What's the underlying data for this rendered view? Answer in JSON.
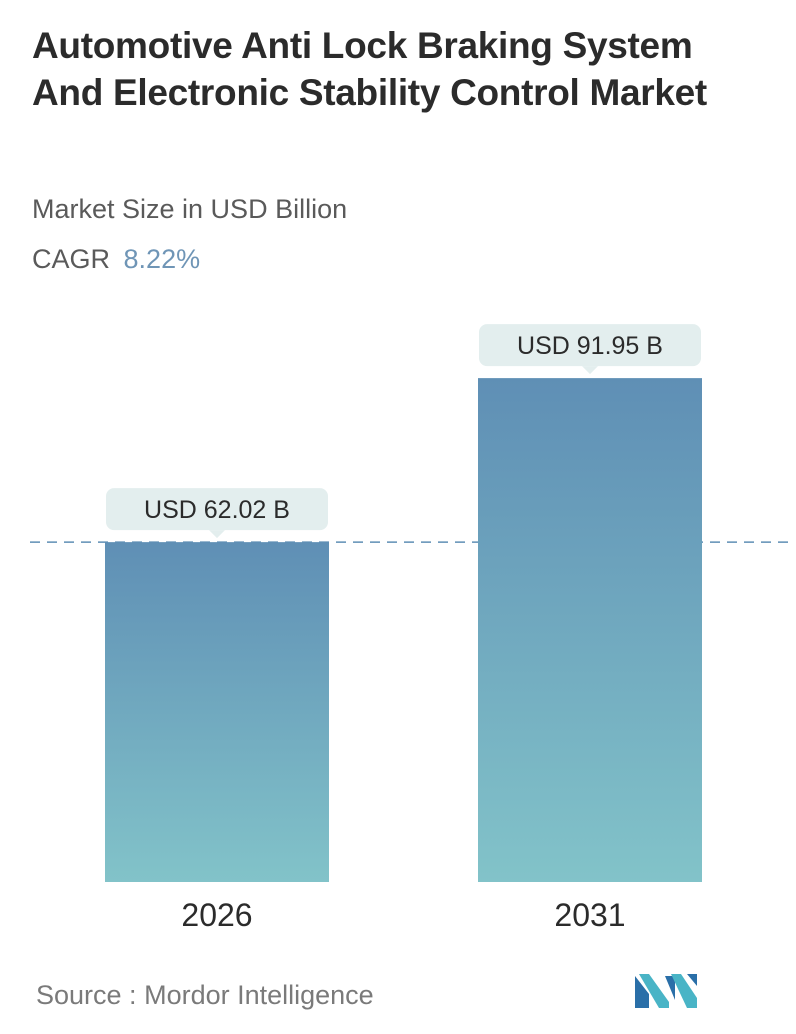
{
  "header": {
    "title": "Automotive Anti Lock Braking System And Electronic Stability Control Market",
    "subtitle": "Market Size in USD Billion",
    "cagr_label": "CAGR",
    "cagr_value": "8.22%"
  },
  "chart_data": {
    "type": "bar",
    "categories": [
      "2026",
      "2031"
    ],
    "values": [
      62.02,
      91.95
    ],
    "data_labels": [
      "USD 62.02 B",
      "USD 91.95 B"
    ],
    "title": "Automotive Anti Lock Braking System And Electronic Stability Control Market",
    "subtitle": "Market Size in USD Billion",
    "ylim": [
      0,
      100
    ],
    "reference_line": 62.02,
    "grid": false,
    "legend": "none",
    "colors": {
      "bar_top": "#5f8fb5",
      "bar_bottom": "#82c3c9",
      "label_box": "#e3eeee",
      "dashed_line": "#5f8fb5"
    }
  },
  "footer": {
    "source_label": "Source :",
    "source_name": "Mordor Intelligence"
  }
}
